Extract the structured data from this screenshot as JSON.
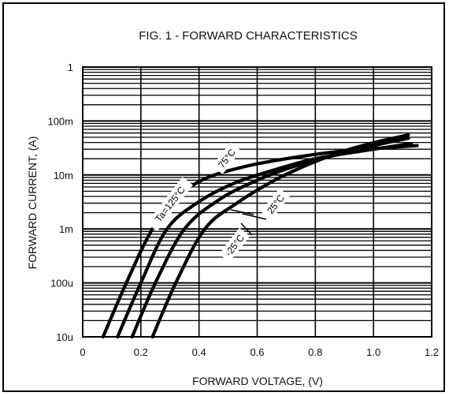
{
  "chart_data": {
    "type": "line",
    "title": "FIG. 1 - FORWARD CHARACTERISTICS",
    "xlabel": "FORWARD  VOLTAGE, (V)",
    "ylabel": "FORWARD  CURRENT, (A)",
    "xlim": [
      0,
      1.2
    ],
    "ylim": [
      1e-05,
      1
    ],
    "y_scale": "log",
    "grid": true,
    "x_ticks": [
      {
        "v": 0,
        "label": "0"
      },
      {
        "v": 0.2,
        "label": "0.2"
      },
      {
        "v": 0.4,
        "label": "0.4"
      },
      {
        "v": 0.6,
        "label": "0.6"
      },
      {
        "v": 0.8,
        "label": "0.8"
      },
      {
        "v": 1.0,
        "label": "1.0"
      },
      {
        "v": 1.2,
        "label": "1.2"
      }
    ],
    "y_ticks": [
      {
        "v": 1,
        "label": "1"
      },
      {
        "v": 0.1,
        "label": "100m"
      },
      {
        "v": 0.01,
        "label": "10m"
      },
      {
        "v": 0.001,
        "label": "1m"
      },
      {
        "v": 0.0001,
        "label": "100u"
      },
      {
        "v": 1e-05,
        "label": "10u"
      }
    ],
    "series": [
      {
        "name": "Ta=125°C",
        "points": [
          [
            0.07,
            1e-05
          ],
          [
            0.15,
            0.0001
          ],
          [
            0.24,
            0.001
          ],
          [
            0.33,
            0.004
          ],
          [
            0.42,
            0.0085
          ],
          [
            0.55,
            0.014
          ],
          [
            0.7,
            0.02
          ],
          [
            0.9,
            0.028
          ],
          [
            1.15,
            0.035
          ]
        ]
      },
      {
        "name": "75°C",
        "points": [
          [
            0.12,
            1e-05
          ],
          [
            0.2,
            0.0001
          ],
          [
            0.29,
            0.001
          ],
          [
            0.4,
            0.0032
          ],
          [
            0.52,
            0.007
          ],
          [
            0.65,
            0.012
          ],
          [
            0.8,
            0.02
          ],
          [
            1.0,
            0.03
          ],
          [
            1.13,
            0.038
          ]
        ]
      },
      {
        "name": "25°C",
        "points": [
          [
            0.17,
            1e-05
          ],
          [
            0.25,
            0.0001
          ],
          [
            0.35,
            0.001
          ],
          [
            0.47,
            0.0035
          ],
          [
            0.6,
            0.008
          ],
          [
            0.72,
            0.014
          ],
          [
            0.85,
            0.022
          ],
          [
            1.0,
            0.035
          ],
          [
            1.12,
            0.048
          ]
        ]
      },
      {
        "name": "-25°C",
        "points": [
          [
            0.24,
            1e-05
          ],
          [
            0.32,
            0.0001
          ],
          [
            0.42,
            0.001
          ],
          [
            0.53,
            0.003
          ],
          [
            0.66,
            0.008
          ],
          [
            0.78,
            0.016
          ],
          [
            0.9,
            0.028
          ],
          [
            1.02,
            0.042
          ],
          [
            1.12,
            0.055
          ]
        ]
      }
    ],
    "annotations": [
      {
        "text": "Ta=125°C",
        "series": 0
      },
      {
        "text": "75°C",
        "series": 1
      },
      {
        "text": "25°C",
        "series": 2
      },
      {
        "text": "-25°C",
        "series": 3
      }
    ]
  }
}
